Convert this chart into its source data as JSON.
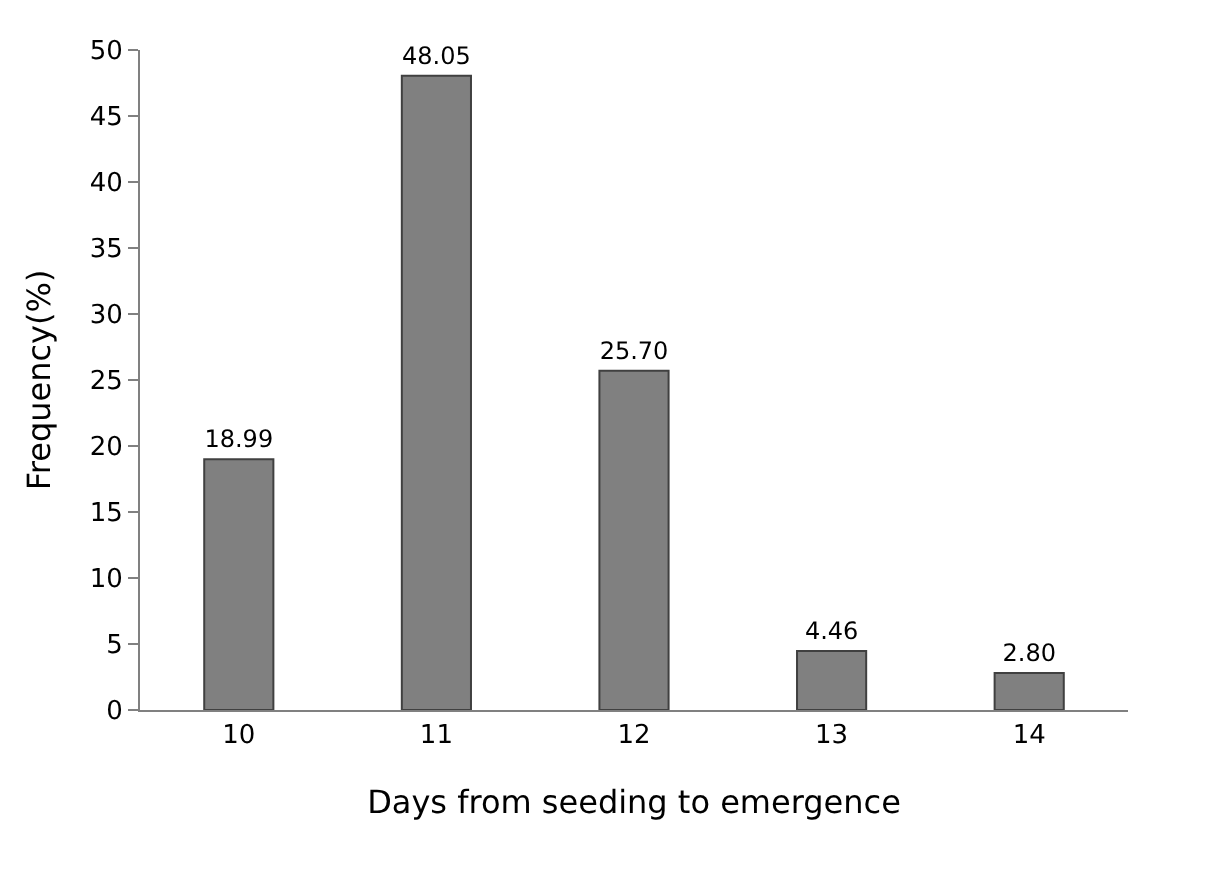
{
  "chart_data": {
    "type": "bar",
    "xlabel": "Days from seeding to emergence",
    "ylabel": "Frequency(%)",
    "categories": [
      "10",
      "11",
      "12",
      "13",
      "14"
    ],
    "values": [
      18.99,
      48.05,
      25.7,
      4.46,
      2.8
    ],
    "value_labels": [
      "18.99",
      "48.05",
      "25.70",
      "4.46",
      "2.80"
    ],
    "color": "#808080",
    "ylim": [
      0,
      50
    ],
    "yticks": [
      0,
      5,
      10,
      15,
      20,
      25,
      30,
      35,
      40,
      45,
      50
    ]
  }
}
